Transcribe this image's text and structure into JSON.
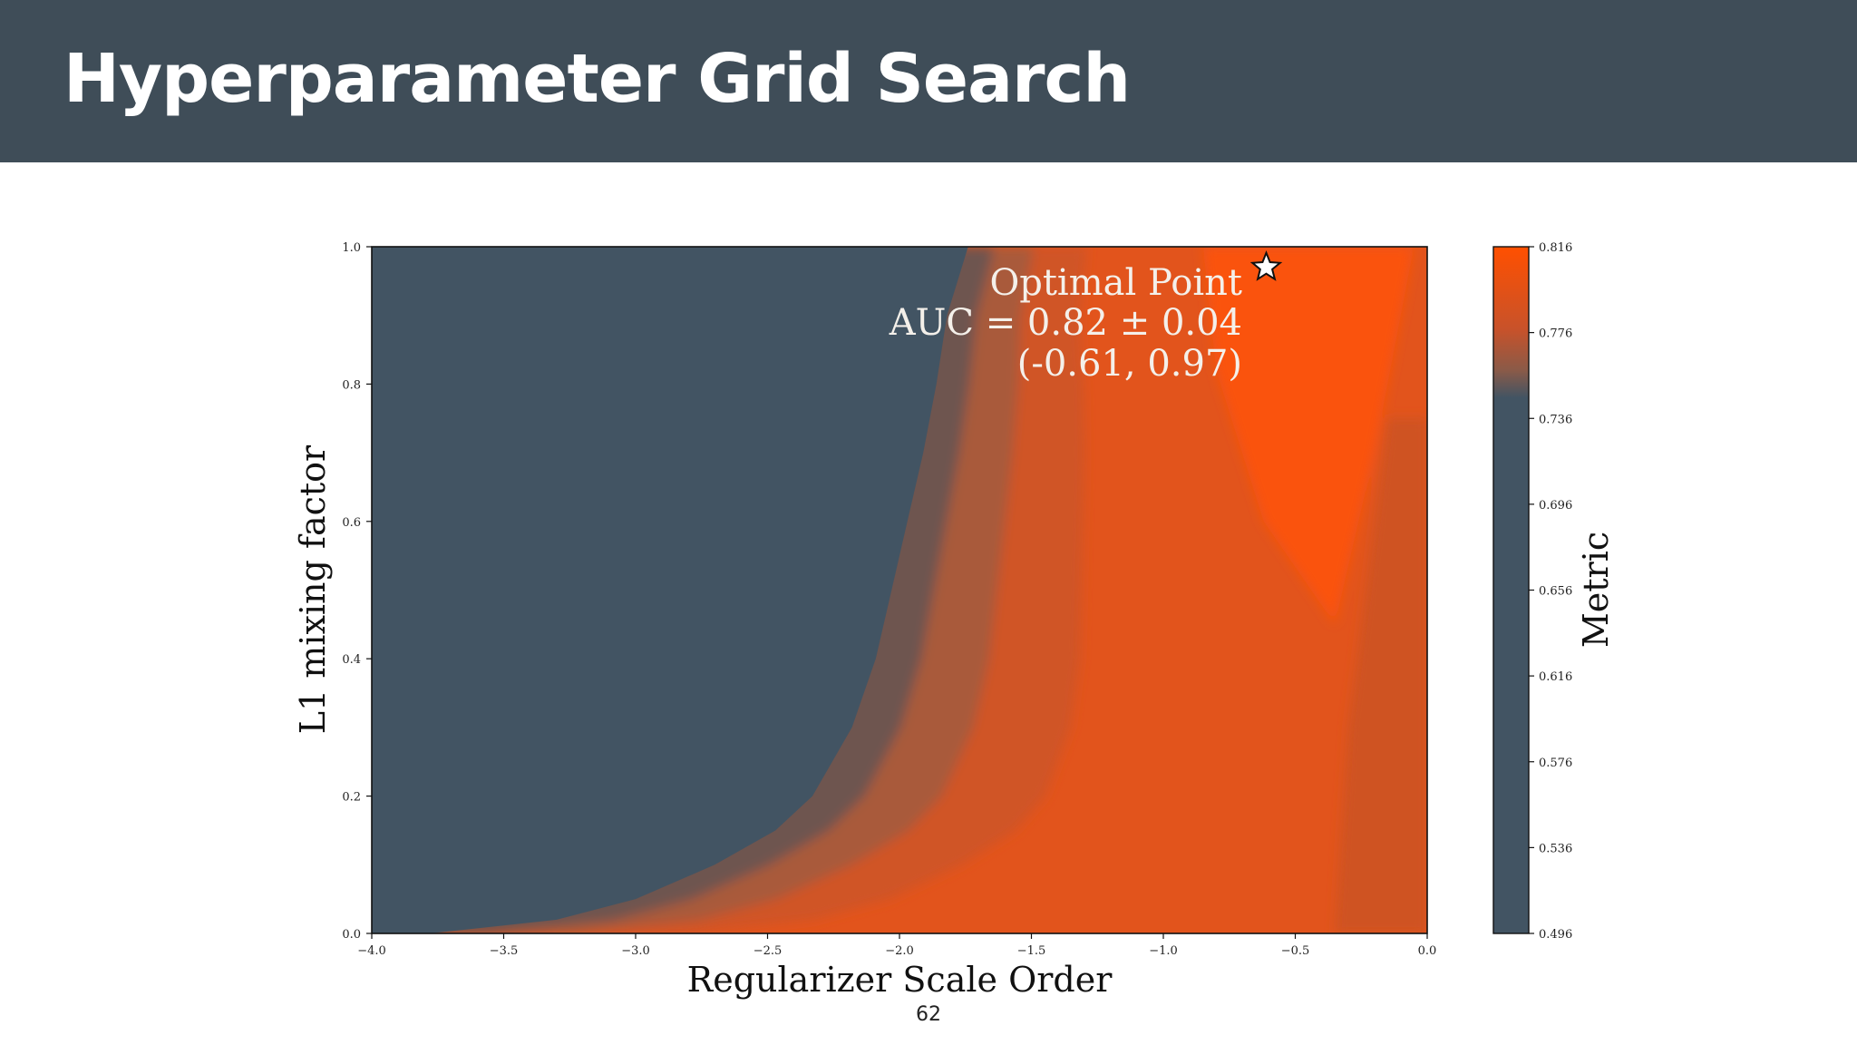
{
  "slide": {
    "title": "Hyperparameter Grid Search",
    "page_number": "62"
  },
  "colors": {
    "header_bg": "#3f4d58",
    "low": "#425463",
    "high": "#ff5000"
  },
  "chart_data": {
    "type": "heatmap",
    "xlabel": "Regularizer Scale Order",
    "ylabel": "L1 mixing factor",
    "xlim": [
      -4.0,
      0.0
    ],
    "ylim": [
      0.0,
      1.0
    ],
    "x_ticks": [
      "−4.0",
      "−3.5",
      "−3.0",
      "−2.5",
      "−2.0",
      "−1.5",
      "−1.0",
      "−0.5",
      "0.0"
    ],
    "y_ticks": [
      "0.0",
      "0.2",
      "0.4",
      "0.6",
      "0.8",
      "1.0"
    ],
    "colorbar": {
      "label": "Metric",
      "range": [
        0.496,
        0.816
      ],
      "ticks": [
        "0.496",
        "0.536",
        "0.576",
        "0.616",
        "0.656",
        "0.696",
        "0.736",
        "0.776",
        "0.816"
      ]
    },
    "annotation": {
      "line1": "Optimal Point",
      "line2": "AUC = 0.82 ± 0.04",
      "line3": "(-0.61, 0.97)"
    },
    "optimal_point": {
      "x": -0.61,
      "y": 0.97
    },
    "boundary_line": [
      {
        "y": 0.0,
        "x": -3.78
      },
      {
        "y": 0.02,
        "x": -3.3
      },
      {
        "y": 0.05,
        "x": -3.0
      },
      {
        "y": 0.1,
        "x": -2.7
      },
      {
        "y": 0.15,
        "x": -2.47
      },
      {
        "y": 0.2,
        "x": -2.33
      },
      {
        "y": 0.3,
        "x": -2.18
      },
      {
        "y": 0.4,
        "x": -2.09
      },
      {
        "y": 0.5,
        "x": -2.03
      },
      {
        "y": 0.6,
        "x": -1.97
      },
      {
        "y": 0.7,
        "x": -1.91
      },
      {
        "y": 0.8,
        "x": -1.86
      },
      {
        "y": 0.9,
        "x": -1.82
      },
      {
        "y": 1.0,
        "x": -1.74
      }
    ]
  }
}
